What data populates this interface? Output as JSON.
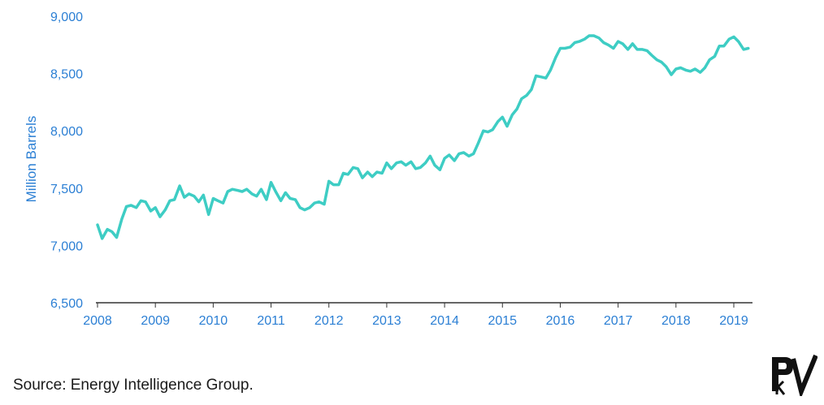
{
  "colors": {
    "line": "#3ecdc4",
    "axis_text": "#2b7fd4",
    "axis_line": "#333333",
    "logo": "#111111"
  },
  "source": "Source: Energy Intelligence Group.",
  "logo": {
    "icon": "pv-logo-icon"
  },
  "chart_data": {
    "type": "line",
    "title": "",
    "ylabel": "Million Barrels",
    "xlabel": "",
    "ylim": [
      6500,
      9000
    ],
    "yticks": [
      "6,500",
      "7,000",
      "7,500",
      "8,000",
      "8,500",
      "9,000"
    ],
    "ytick_values": [
      6500,
      7000,
      7500,
      8000,
      8500,
      9000
    ],
    "xlim": [
      2008,
      2019.33
    ],
    "xticks": [
      "2008",
      "2009",
      "2010",
      "2011",
      "2012",
      "2013",
      "2014",
      "2015",
      "2016",
      "2017",
      "2018",
      "2019"
    ],
    "grid": false,
    "series": [
      {
        "x": [
          2008.0,
          2008.08,
          2008.17,
          2008.25,
          2008.33,
          2008.42,
          2008.5,
          2008.58,
          2008.67,
          2008.75,
          2008.83,
          2008.92,
          2009.0,
          2009.08,
          2009.17,
          2009.25,
          2009.33,
          2009.42,
          2009.5,
          2009.58,
          2009.67,
          2009.75,
          2009.83,
          2009.92,
          2010.0,
          2010.08,
          2010.17,
          2010.25,
          2010.33,
          2010.42,
          2010.5,
          2010.58,
          2010.67,
          2010.75,
          2010.83,
          2010.92,
          2011.0,
          2011.08,
          2011.17,
          2011.25,
          2011.33,
          2011.42,
          2011.5,
          2011.58,
          2011.67,
          2011.75,
          2011.83,
          2011.92,
          2012.0,
          2012.08,
          2012.17,
          2012.25,
          2012.33,
          2012.42,
          2012.5,
          2012.58,
          2012.67,
          2012.75,
          2012.83,
          2012.92,
          2013.0,
          2013.08,
          2013.17,
          2013.25,
          2013.33,
          2013.42,
          2013.5,
          2013.58,
          2013.67,
          2013.75,
          2013.83,
          2013.92,
          2014.0,
          2014.08,
          2014.17,
          2014.25,
          2014.33,
          2014.42,
          2014.5,
          2014.58,
          2014.67,
          2014.75,
          2014.83,
          2014.92,
          2015.0,
          2015.08,
          2015.17,
          2015.25,
          2015.33,
          2015.42,
          2015.5,
          2015.58,
          2015.67,
          2015.75,
          2015.83,
          2015.92,
          2016.0,
          2016.08,
          2016.17,
          2016.25,
          2016.33,
          2016.42,
          2016.5,
          2016.58,
          2016.67,
          2016.75,
          2016.83,
          2016.92,
          2017.0,
          2017.08,
          2017.17,
          2017.25,
          2017.33,
          2017.42,
          2017.5,
          2017.58,
          2017.67,
          2017.75,
          2017.83,
          2017.92,
          2018.0,
          2018.08,
          2018.17,
          2018.25,
          2018.33,
          2018.42,
          2018.5,
          2018.58,
          2018.67,
          2018.75,
          2018.83,
          2018.92,
          2019.0,
          2019.08,
          2019.17,
          2019.25
        ],
        "values": [
          7180,
          7060,
          7140,
          7120,
          7070,
          7230,
          7340,
          7350,
          7330,
          7390,
          7380,
          7300,
          7330,
          7250,
          7310,
          7390,
          7400,
          7520,
          7420,
          7450,
          7430,
          7380,
          7440,
          7270,
          7410,
          7390,
          7370,
          7470,
          7490,
          7480,
          7470,
          7490,
          7450,
          7430,
          7490,
          7400,
          7550,
          7470,
          7390,
          7460,
          7410,
          7400,
          7330,
          7310,
          7330,
          7370,
          7380,
          7360,
          7560,
          7530,
          7530,
          7630,
          7620,
          7680,
          7670,
          7590,
          7640,
          7600,
          7640,
          7630,
          7720,
          7670,
          7720,
          7730,
          7700,
          7730,
          7670,
          7680,
          7720,
          7780,
          7700,
          7660,
          7760,
          7790,
          7740,
          7800,
          7810,
          7780,
          7800,
          7890,
          8000,
          7990,
          8010,
          8080,
          8120,
          8040,
          8140,
          8190,
          8280,
          8310,
          8360,
          8480,
          8470,
          8460,
          8530,
          8640,
          8720,
          8720,
          8730,
          8770,
          8780,
          8800,
          8830,
          8830,
          8810,
          8770,
          8750,
          8720,
          8780,
          8760,
          8710,
          8760,
          8710,
          8710,
          8700,
          8660,
          8620,
          8600,
          8560,
          8490,
          8540,
          8550,
          8530,
          8520,
          8540,
          8510,
          8550,
          8620,
          8650,
          8740,
          8740,
          8800,
          8820,
          8780,
          8710,
          8720
        ]
      }
    ]
  }
}
